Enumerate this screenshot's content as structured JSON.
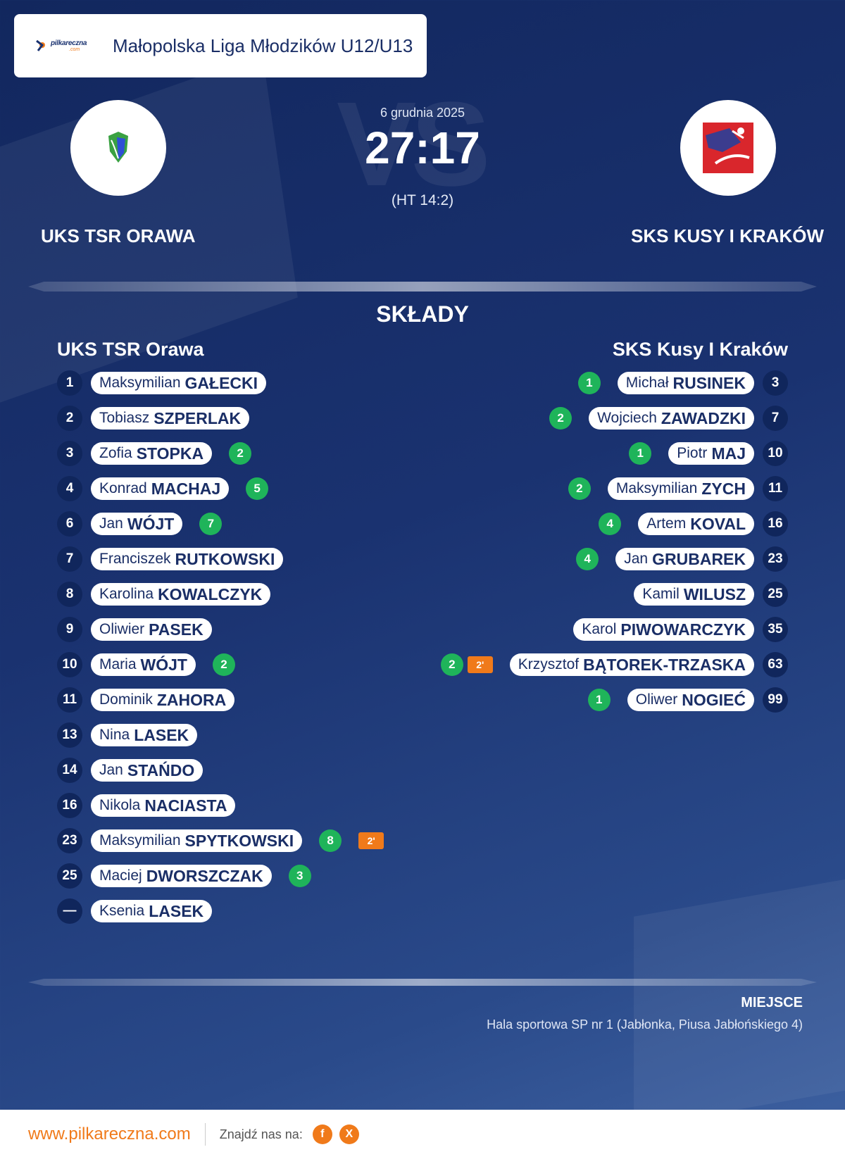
{
  "header": {
    "logo_text": "pilkareczna",
    "logo_sub": ".com",
    "league": "Małopolska Liga Młodzików U12/U13"
  },
  "match": {
    "vs_text": "VS",
    "date": "6 grudnia 2025",
    "score": "27:17",
    "halftime": "(HT 14:2)"
  },
  "home": {
    "name_upper": "UKS TSR ORAWA",
    "name": "UKS TSR Orawa",
    "logo_icon": "green-blue-shield-crest"
  },
  "away": {
    "name_upper": "SKS KUSY I KRAKÓW",
    "name": "SKS Kusy I Kraków",
    "logo_icon": "red-white-figure-crest"
  },
  "section_title": "SKŁADY",
  "home_players": [
    {
      "num": "1",
      "first": "Maksymilian",
      "last": "GAŁECKI",
      "goals": "",
      "pen": ""
    },
    {
      "num": "2",
      "first": "Tobiasz",
      "last": "SZPERLAK",
      "goals": "",
      "pen": ""
    },
    {
      "num": "3",
      "first": "Zofia",
      "last": "STOPKA",
      "goals": "2",
      "pen": ""
    },
    {
      "num": "4",
      "first": "Konrad",
      "last": "MACHAJ",
      "goals": "5",
      "pen": ""
    },
    {
      "num": "6",
      "first": "Jan",
      "last": "WÓJT",
      "goals": "7",
      "pen": ""
    },
    {
      "num": "7",
      "first": "Franciszek",
      "last": "RUTKOWSKI",
      "goals": "",
      "pen": ""
    },
    {
      "num": "8",
      "first": "Karolina",
      "last": "KOWALCZYK",
      "goals": "",
      "pen": ""
    },
    {
      "num": "9",
      "first": "Oliwier",
      "last": "PASEK",
      "goals": "",
      "pen": ""
    },
    {
      "num": "10",
      "first": "Maria",
      "last": "WÓJT",
      "goals": "2",
      "pen": ""
    },
    {
      "num": "11",
      "first": "Dominik",
      "last": "ZAHORA",
      "goals": "",
      "pen": ""
    },
    {
      "num": "13",
      "first": "Nina",
      "last": "LASEK",
      "goals": "",
      "pen": ""
    },
    {
      "num": "14",
      "first": "Jan",
      "last": "STAŃDO",
      "goals": "",
      "pen": ""
    },
    {
      "num": "16",
      "first": "Nikola",
      "last": "NACIASTA",
      "goals": "",
      "pen": ""
    },
    {
      "num": "23",
      "first": "Maksymilian",
      "last": "SPYTKOWSKI",
      "goals": "8",
      "pen": "2'"
    },
    {
      "num": "25",
      "first": "Maciej",
      "last": "DWORSZCZAK",
      "goals": "3",
      "pen": ""
    },
    {
      "num": "—",
      "first": "Ksenia",
      "last": "LASEK",
      "goals": "",
      "pen": ""
    }
  ],
  "away_players": [
    {
      "num": "3",
      "first": "Michał",
      "last": "RUSINEK",
      "goals": "1",
      "pen": ""
    },
    {
      "num": "7",
      "first": "Wojciech",
      "last": "ZAWADZKI",
      "goals": "2",
      "pen": ""
    },
    {
      "num": "10",
      "first": "Piotr",
      "last": "MAJ",
      "goals": "1",
      "pen": ""
    },
    {
      "num": "11",
      "first": "Maksymilian",
      "last": "ZYCH",
      "goals": "2",
      "pen": ""
    },
    {
      "num": "16",
      "first": "Artem",
      "last": "KOVAL",
      "goals": "4",
      "pen": ""
    },
    {
      "num": "23",
      "first": "Jan",
      "last": "GRUBAREK",
      "goals": "4",
      "pen": ""
    },
    {
      "num": "25",
      "first": "Kamil",
      "last": "WILUSZ",
      "goals": "",
      "pen": ""
    },
    {
      "num": "35",
      "first": "Karol",
      "last": "PIWOWARCZYK",
      "goals": "",
      "pen": ""
    },
    {
      "num": "63",
      "first": "Krzysztof",
      "last": "BĄTOREK-TRZASKA",
      "goals": "2",
      "pen": "2'"
    },
    {
      "num": "99",
      "first": "Oliwer",
      "last": "NOGIEĆ",
      "goals": "1",
      "pen": ""
    }
  ],
  "venue": {
    "label": "MIEJSCE",
    "value": "Hala sportowa SP nr 1 (Jabłonka, Piusa Jabłońskiego 4)"
  },
  "footer": {
    "url": "www.pilkareczna.com",
    "find_us": "Znajdź nas na:",
    "social": [
      {
        "icon": "facebook-icon",
        "glyph": "f"
      },
      {
        "icon": "x-icon",
        "glyph": "X"
      }
    ]
  },
  "colors": {
    "accent": "#f07a1a",
    "goal": "#1fb45a",
    "navy": "#1a2e66"
  }
}
